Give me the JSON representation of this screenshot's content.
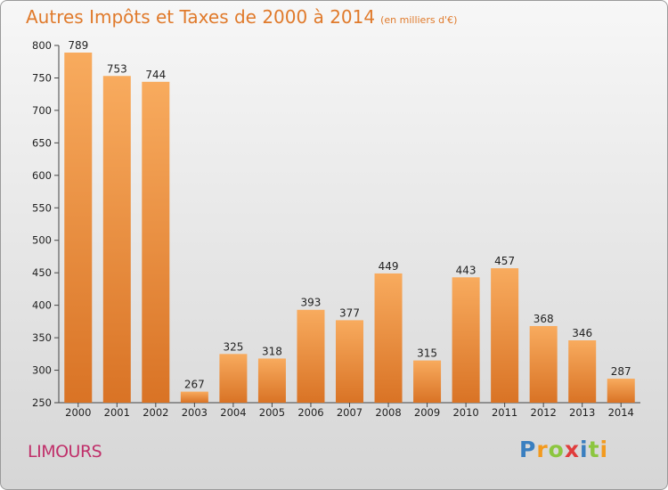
{
  "header": {
    "title": "Autres Impôts et Taxes de 2000 à 2014",
    "subtitle": "(en milliers d'€)"
  },
  "footer": {
    "city": "LIMOURS",
    "brand": "Proxiti"
  },
  "colors": {
    "title": "#e07a2b",
    "city": "#c0306a",
    "bar_top": "#f8ab5e",
    "bar_bottom": "#d97325"
  },
  "brand_letters": [
    {
      "ch": "P",
      "color": "#3a7fc0"
    },
    {
      "ch": "r",
      "color": "#f39a1e"
    },
    {
      "ch": "o",
      "color": "#8cc63f"
    },
    {
      "ch": "x",
      "color": "#e03c3c"
    },
    {
      "ch": "i",
      "color": "#3a7fc0"
    },
    {
      "ch": "t",
      "color": "#8cc63f"
    },
    {
      "ch": "i",
      "color": "#f39a1e"
    }
  ],
  "chart_data": {
    "type": "bar",
    "title": "Autres Impôts et Taxes de 2000 à 2014",
    "subtitle": "(en milliers d'€)",
    "categories": [
      "2000",
      "2001",
      "2002",
      "2003",
      "2004",
      "2005",
      "2006",
      "2007",
      "2008",
      "2009",
      "2010",
      "2011",
      "2012",
      "2013",
      "2014"
    ],
    "values": [
      789,
      753,
      744,
      267,
      325,
      318,
      393,
      377,
      449,
      315,
      443,
      457,
      368,
      346,
      287
    ],
    "ylim": [
      250,
      800
    ],
    "yticks": [
      250,
      300,
      350,
      400,
      450,
      500,
      550,
      600,
      650,
      700,
      750,
      800
    ],
    "grid": false,
    "data_labels": true
  }
}
